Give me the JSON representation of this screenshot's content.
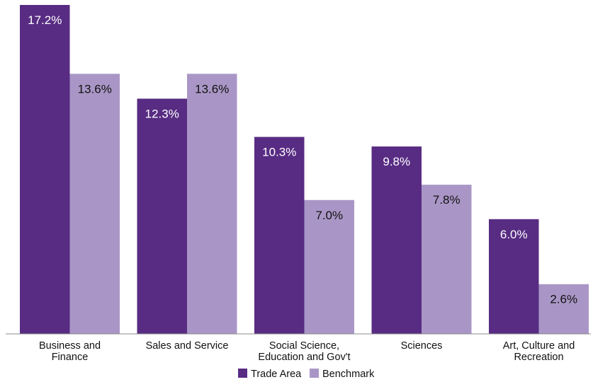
{
  "chart_data": {
    "type": "bar",
    "categories": [
      [
        "Business and",
        "Finance"
      ],
      [
        "Sales and Service"
      ],
      [
        "Social Science,",
        "Education and Gov't"
      ],
      [
        "Sciences"
      ],
      [
        "Art, Culture and",
        "Recreation"
      ]
    ],
    "series": [
      {
        "name": "Trade Area",
        "color": "#582C83",
        "values": [
          17.2,
          12.3,
          10.3,
          9.8,
          6.0
        ],
        "labels": [
          "17.2%",
          "12.3%",
          "10.3%",
          "9.8%",
          "6.0%"
        ]
      },
      {
        "name": "Benchmark",
        "color": "#A996C6",
        "values": [
          13.6,
          13.6,
          7.0,
          7.8,
          2.6
        ],
        "labels": [
          "13.6%",
          "13.6%",
          "7.0%",
          "7.8%",
          "2.6%"
        ]
      }
    ],
    "ylim": [
      0,
      17.2
    ],
    "grid": false,
    "legend_position": "bottom-center"
  }
}
